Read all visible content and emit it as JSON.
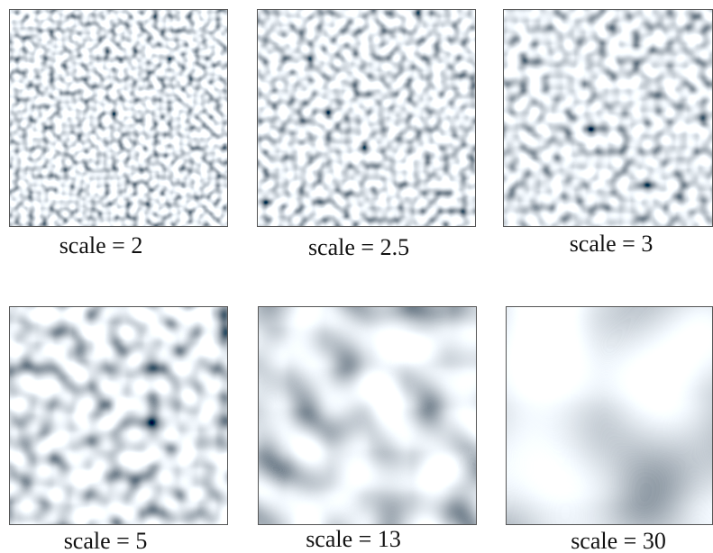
{
  "panels": [
    {
      "caption": "scale = 2"
    },
    {
      "caption": "scale = 2.5"
    },
    {
      "caption": "scale = 3"
    },
    {
      "caption": "scale = 5"
    },
    {
      "caption": "scale = 13"
    },
    {
      "caption": "scale = 30"
    }
  ]
}
